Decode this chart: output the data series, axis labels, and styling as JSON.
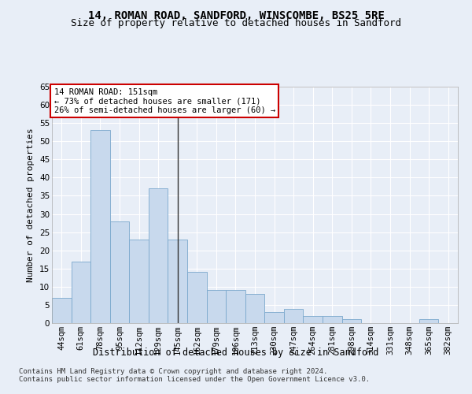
{
  "title1": "14, ROMAN ROAD, SANDFORD, WINSCOMBE, BS25 5RE",
  "title2": "Size of property relative to detached houses in Sandford",
  "xlabel": "Distribution of detached houses by size in Sandford",
  "ylabel": "Number of detached properties",
  "categories": [
    "44sqm",
    "61sqm",
    "78sqm",
    "95sqm",
    "112sqm",
    "129sqm",
    "145sqm",
    "162sqm",
    "179sqm",
    "196sqm",
    "213sqm",
    "230sqm",
    "247sqm",
    "264sqm",
    "281sqm",
    "298sqm",
    "314sqm",
    "331sqm",
    "348sqm",
    "365sqm",
    "382sqm"
  ],
  "values": [
    7,
    17,
    53,
    28,
    23,
    37,
    23,
    14,
    9,
    9,
    8,
    3,
    4,
    2,
    2,
    1,
    0,
    0,
    0,
    1,
    0
  ],
  "bar_color": "#c8d9ed",
  "bar_edge_color": "#7aa8cc",
  "highlight_bar_index": 6,
  "highlight_line_color": "#333333",
  "annotation_text": "14 ROMAN ROAD: 151sqm\n← 73% of detached houses are smaller (171)\n26% of semi-detached houses are larger (60) →",
  "annotation_box_color": "#ffffff",
  "annotation_box_edge_color": "#cc0000",
  "ylim": [
    0,
    65
  ],
  "yticks": [
    0,
    5,
    10,
    15,
    20,
    25,
    30,
    35,
    40,
    45,
    50,
    55,
    60,
    65
  ],
  "footer1": "Contains HM Land Registry data © Crown copyright and database right 2024.",
  "footer2": "Contains public sector information licensed under the Open Government Licence v3.0.",
  "bg_color": "#e8eef7",
  "plot_bg_color": "#e8eef7",
  "grid_color": "#ffffff",
  "title1_fontsize": 10,
  "title2_fontsize": 9,
  "xlabel_fontsize": 8.5,
  "ylabel_fontsize": 8,
  "tick_fontsize": 7.5,
  "footer_fontsize": 6.5
}
